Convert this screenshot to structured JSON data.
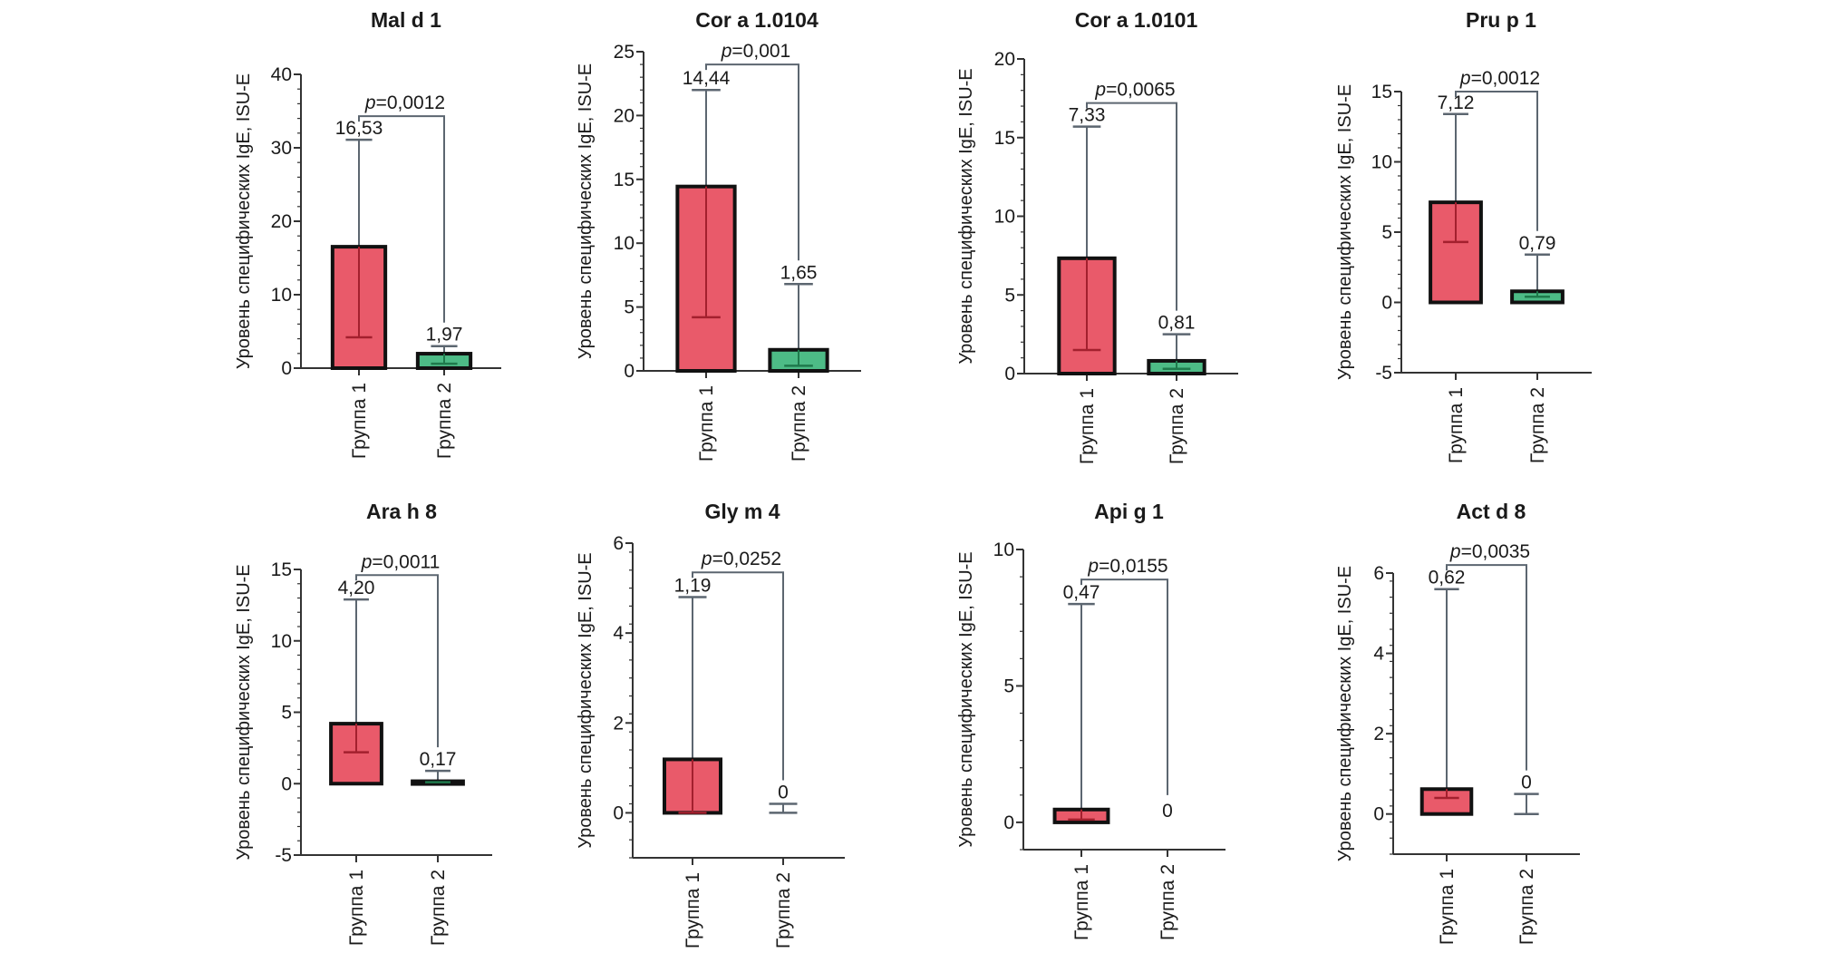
{
  "colors": {
    "group1_fill": "#e95a6a",
    "group2_fill": "#4dbb86",
    "bar_edge": "#111111",
    "whisker": "#5c6670",
    "median_line_group1": "#a3202e",
    "median_line_group2": "#1f7a4c",
    "axis": "#333333"
  },
  "chart_data": [
    {
      "type": "bar",
      "title": "Mal d 1",
      "ylabel": "Уровень специфических IgE, ISU-E",
      "categories": [
        "Группа 1",
        "Группа 2"
      ],
      "values": [
        16.53,
        1.97
      ],
      "value_labels": [
        "16,53",
        "1,97"
      ],
      "whisker_low": [
        4.2,
        0.6
      ],
      "whisker_high": [
        31.1,
        3.0
      ],
      "p_value_label": "p=0,0012",
      "p_prefix": "p",
      "p_rest": "=0,0012",
      "bracket_y": 34.3,
      "ylim": [
        0,
        40
      ],
      "yticks": [
        0,
        10,
        20,
        30,
        40
      ],
      "ytick_labels": [
        "0",
        "10",
        "20",
        "30",
        "40"
      ]
    },
    {
      "type": "bar",
      "title": "Cor a 1.0104",
      "ylabel": "Уровень специфических IgE, ISU-E",
      "categories": [
        "Группа 1",
        "Группа 2"
      ],
      "values": [
        14.44,
        1.65
      ],
      "value_labels": [
        "14,44",
        "1,65"
      ],
      "whisker_low": [
        4.2,
        0.4
      ],
      "whisker_high": [
        22.0,
        6.8
      ],
      "p_value_label": "p=0,001",
      "p_prefix": "p",
      "p_rest": "=0,001",
      "bracket_y": 24.0,
      "ylim": [
        0,
        25
      ],
      "yticks": [
        0,
        5,
        10,
        15,
        20,
        25
      ],
      "ytick_labels": [
        "0",
        "5",
        "10",
        "15",
        "20",
        "25"
      ]
    },
    {
      "type": "bar",
      "title": "Cor a 1.0101",
      "ylabel": "Уровень специфических IgE, ISU-E",
      "categories": [
        "Группа 1",
        "Группа 2"
      ],
      "values": [
        7.33,
        0.81
      ],
      "value_labels": [
        "7,33",
        "0,81"
      ],
      "whisker_low": [
        1.5,
        0.3
      ],
      "whisker_high": [
        15.7,
        2.5
      ],
      "p_value_label": "p=0,0065",
      "p_prefix": "p",
      "p_rest": "=0,0065",
      "bracket_y": 17.2,
      "ylim": [
        0,
        20
      ],
      "yticks": [
        0,
        5,
        10,
        15,
        20
      ],
      "ytick_labels": [
        "0",
        "5",
        "10",
        "15",
        "20"
      ]
    },
    {
      "type": "bar",
      "title": "Pru p 1",
      "ylabel": "Уровень специфических IgE, ISU-E",
      "categories": [
        "Группа 1",
        "Группа 2"
      ],
      "values": [
        7.12,
        0.79
      ],
      "value_labels": [
        "7,12",
        "0,79"
      ],
      "whisker_low": [
        4.3,
        0.4
      ],
      "whisker_high": [
        13.4,
        3.4
      ],
      "p_value_label": "p=0,0012",
      "p_prefix": "p",
      "p_rest": "=0,0012",
      "bracket_y": 15.0,
      "ylim": [
        -5,
        15
      ],
      "yticks": [
        -5,
        0,
        5,
        10,
        15
      ],
      "ytick_labels": [
        "-5",
        "0",
        "5",
        "10",
        "15"
      ]
    },
    {
      "type": "bar",
      "title": "Ara h 8",
      "ylabel": "Уровень специфических IgE, ISU-E",
      "categories": [
        "Группа 1",
        "Группа 2"
      ],
      "values": [
        4.2,
        0.17
      ],
      "value_labels": [
        "4,20",
        "0,17"
      ],
      "whisker_low": [
        2.2,
        0.1
      ],
      "whisker_high": [
        12.9,
        0.9
      ],
      "p_value_label": "p=0,0011",
      "p_prefix": "p",
      "p_rest": "=0,0011",
      "bracket_y": 14.6,
      "ylim": [
        -5,
        15
      ],
      "yticks": [
        -5,
        0,
        5,
        10,
        15
      ],
      "ytick_labels": [
        "-5",
        "0",
        "5",
        "10",
        "15"
      ]
    },
    {
      "type": "bar",
      "title": "Gly m 4",
      "ylabel": "Уровень специфических IgE, ISU-E",
      "categories": [
        "Группа 1",
        "Группа 2"
      ],
      "values": [
        1.19,
        0
      ],
      "value_labels": [
        "1,19",
        "0"
      ],
      "whisker_low": [
        0,
        0
      ],
      "whisker_high": [
        4.8,
        0.2
      ],
      "p_value_label": "p=0,0252",
      "p_prefix": "p",
      "p_rest": "=0,0252",
      "bracket_y": 5.35,
      "ylim": [
        -1,
        6
      ],
      "yticks": [
        0,
        2,
        4,
        6
      ],
      "ytick_labels": [
        "0",
        "2",
        "4",
        "6"
      ]
    },
    {
      "type": "bar",
      "title": "Api g 1",
      "ylabel": "Уровень специфических IgE, ISU-E",
      "categories": [
        "Группа 1",
        "Группа 2"
      ],
      "values": [
        0.47,
        0
      ],
      "value_labels": [
        "0,47",
        "0"
      ],
      "whisker_low": [
        0.1,
        0
      ],
      "whisker_high": [
        8.0,
        0
      ],
      "p_value_label": "p=0,0155",
      "p_prefix": "p",
      "p_rest": "=0,0155",
      "bracket_y": 8.9,
      "ylim": [
        -1,
        10
      ],
      "yticks": [
        0,
        5,
        10
      ],
      "ytick_labels": [
        "0",
        "5",
        "10"
      ]
    },
    {
      "type": "bar",
      "title": "Act d 8",
      "ylabel": "Уровень специфических IgE, ISU-E",
      "categories": [
        "Группа 1",
        "Группа 2"
      ],
      "values": [
        0.62,
        0
      ],
      "value_labels": [
        "0,62",
        "0"
      ],
      "whisker_low": [
        0.4,
        0
      ],
      "whisker_high": [
        5.6,
        0.5
      ],
      "p_value_label": "p=0,0035",
      "p_prefix": "p",
      "p_rest": "=0,0035",
      "bracket_y": 6.2,
      "ylim": [
        -1,
        6
      ],
      "yticks": [
        0,
        2,
        4,
        6
      ],
      "ytick_labels": [
        "0",
        "2",
        "4",
        "6"
      ]
    }
  ]
}
